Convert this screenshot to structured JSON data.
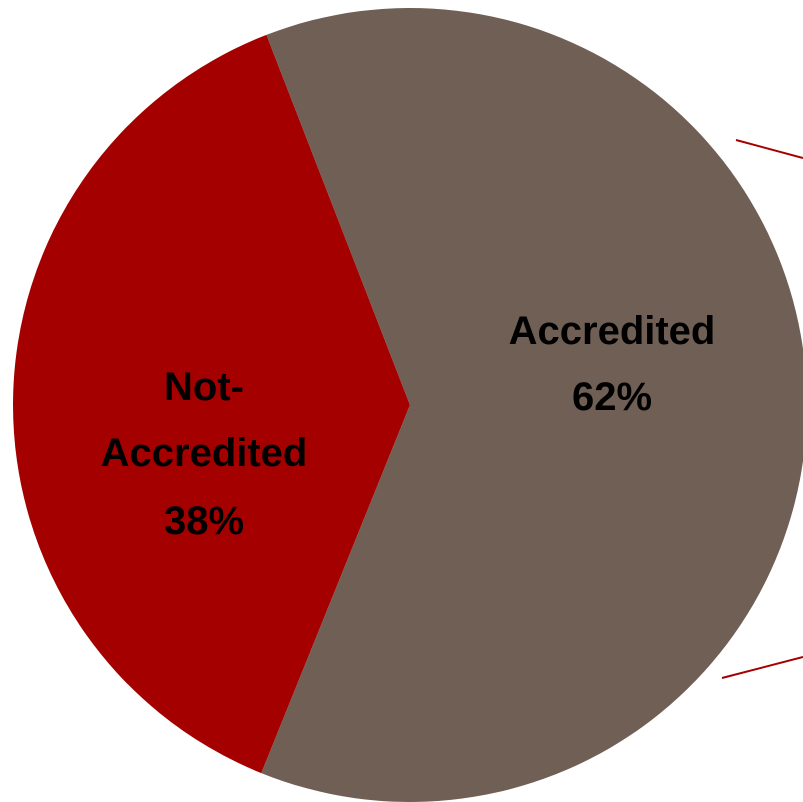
{
  "chart_data": {
    "type": "pie",
    "slices": [
      {
        "lines": [
          "Not-",
          "Accredited"
        ],
        "label": "Not-Accredited",
        "value": 38,
        "value_label": "38%",
        "color": "#A50000"
      },
      {
        "lines": [
          "Accredited"
        ],
        "label": "Accredited",
        "value": 62,
        "value_label": "62%",
        "color": "#705F55"
      }
    ],
    "annotation_line_color": "#A50000"
  }
}
